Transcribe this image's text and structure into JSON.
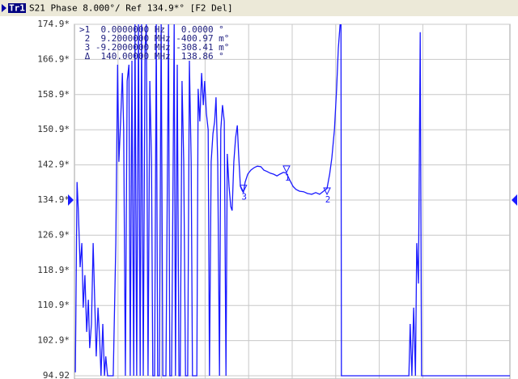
{
  "chart_data": {
    "type": "line",
    "trace_label": "Tr1",
    "title": "S21 Phase 8.000°/ Ref 134.9*° [F2 Del]",
    "annotations": [
      ">1  0.0000000 Hz   0.0000 °",
      " 2  9.2000000 MHz -400.97 m°",
      " 3 -9.2000000 MHz -308.41 m°",
      " Δ  140.00000 MHz  138.86 °"
    ],
    "color": "#1a1aff",
    "reference": 134.9,
    "xlim": [
      0,
      10
    ],
    "ylim": [
      94.9,
      174.9
    ],
    "yticks": [
      {
        "value": 174.9,
        "label": "174.9*"
      },
      {
        "value": 166.9,
        "label": "166.9*"
      },
      {
        "value": 158.9,
        "label": "158.9*"
      },
      {
        "value": 150.9,
        "label": "150.9*"
      },
      {
        "value": 142.9,
        "label": "142.9*"
      },
      {
        "value": 134.9,
        "label": "134.9*"
      },
      {
        "value": 126.9,
        "label": "126.9*"
      },
      {
        "value": 118.9,
        "label": "118.9*"
      },
      {
        "value": 110.9,
        "label": "110.9*"
      },
      {
        "value": 102.9,
        "label": "102.9*"
      },
      {
        "value": 94.9,
        "label": "94.92"
      }
    ],
    "grid": true,
    "markers": [
      {
        "label": "1",
        "x": 4.87,
        "y": 141.2
      },
      {
        "label": "2",
        "x": 5.8,
        "y": 136.2
      },
      {
        "label": "3",
        "x": 3.88,
        "y": 136.8
      }
    ],
    "x": [
      0.02,
      0.06,
      0.09,
      0.13,
      0.17,
      0.2,
      0.24,
      0.28,
      0.32,
      0.35,
      0.39,
      0.43,
      0.46,
      0.5,
      0.54,
      0.58,
      0.61,
      0.65,
      0.69,
      0.72,
      0.76,
      0.89,
      0.95,
      0.99,
      1.02,
      1.06,
      1.1,
      1.13,
      1.17,
      1.21,
      1.25,
      1.28,
      1.32,
      1.36,
      1.39,
      1.43,
      1.47,
      1.51,
      1.54,
      1.58,
      1.62,
      1.65,
      1.69,
      1.73,
      1.77,
      1.8,
      1.84,
      1.88,
      1.91,
      1.95,
      1.99,
      2.03,
      2.06,
      2.1,
      2.16,
      2.19,
      2.23,
      2.29,
      2.32,
      2.36,
      2.4,
      2.43,
      2.47,
      2.51,
      2.55,
      2.6,
      2.64,
      2.68,
      2.71,
      2.75,
      2.81,
      2.84,
      2.88,
      2.92,
      2.96,
      2.99,
      3.03,
      3.07,
      3.1,
      3.14,
      3.18,
      3.22,
      3.25,
      3.29,
      3.33,
      3.36,
      3.4,
      3.44,
      3.48,
      3.51,
      3.55,
      3.59,
      3.62,
      3.66,
      3.7,
      3.74,
      3.77,
      3.81,
      3.85,
      3.88,
      3.92,
      3.98,
      4.05,
      4.13,
      4.2,
      4.28,
      4.35,
      4.42,
      4.5,
      4.57,
      4.65,
      4.72,
      4.8,
      4.87,
      4.94,
      5.02,
      5.09,
      5.17,
      5.26,
      5.35,
      5.45,
      5.54,
      5.63,
      5.72,
      5.8,
      5.86,
      5.91,
      5.97,
      6.02,
      6.06,
      6.1,
      6.12,
      6.13,
      6.19,
      7.68,
      7.71,
      7.75,
      7.79,
      7.83,
      7.86,
      7.9,
      7.94,
      7.97,
      8.01,
      8.07,
      10
    ],
    "values": [
      95.7,
      139.0,
      132.5,
      119.6,
      125.1,
      110.4,
      117.8,
      104.9,
      112.2,
      101.2,
      106.7,
      125.1,
      114.1,
      99.3,
      110.4,
      103.0,
      94.9,
      106.7,
      94.9,
      99.3,
      94.9,
      94.9,
      125.1,
      165.7,
      143.6,
      152.8,
      163.8,
      150.9,
      94.9,
      162.0,
      165.7,
      94.9,
      166.6,
      94.9,
      174.9,
      94.9,
      174.9,
      94.9,
      174.9,
      94.9,
      169.4,
      174.9,
      94.9,
      162.0,
      143.6,
      94.9,
      94.9,
      174.9,
      94.9,
      94.9,
      174.9,
      94.9,
      94.9,
      94.9,
      174.9,
      94.9,
      94.9,
      174.9,
      94.9,
      165.7,
      94.9,
      94.9,
      162.0,
      143.6,
      94.9,
      94.9,
      166.6,
      143.6,
      94.9,
      94.9,
      94.9,
      160.2,
      152.8,
      163.8,
      156.5,
      162.0,
      154.6,
      150.9,
      94.9,
      143.6,
      150.0,
      152.8,
      158.3,
      143.6,
      94.9,
      150.9,
      156.5,
      152.8,
      94.9,
      145.4,
      138.0,
      133.4,
      132.5,
      143.6,
      149.1,
      151.9,
      145.4,
      138.0,
      137.1,
      136.6,
      139.0,
      140.8,
      141.7,
      142.3,
      142.6,
      142.5,
      141.7,
      141.4,
      141.0,
      140.8,
      140.4,
      140.8,
      141.2,
      141.0,
      139.5,
      138.0,
      137.3,
      136.9,
      136.8,
      136.4,
      136.2,
      136.6,
      136.2,
      136.9,
      137.5,
      140.8,
      144.5,
      150.9,
      160.2,
      169.4,
      174.9,
      174.9,
      94.9,
      94.9,
      94.9,
      106.7,
      94.9,
      110.4,
      94.9,
      125.1,
      115.9,
      173.1,
      94.9,
      94.9,
      94.9,
      94.9
    ]
  }
}
